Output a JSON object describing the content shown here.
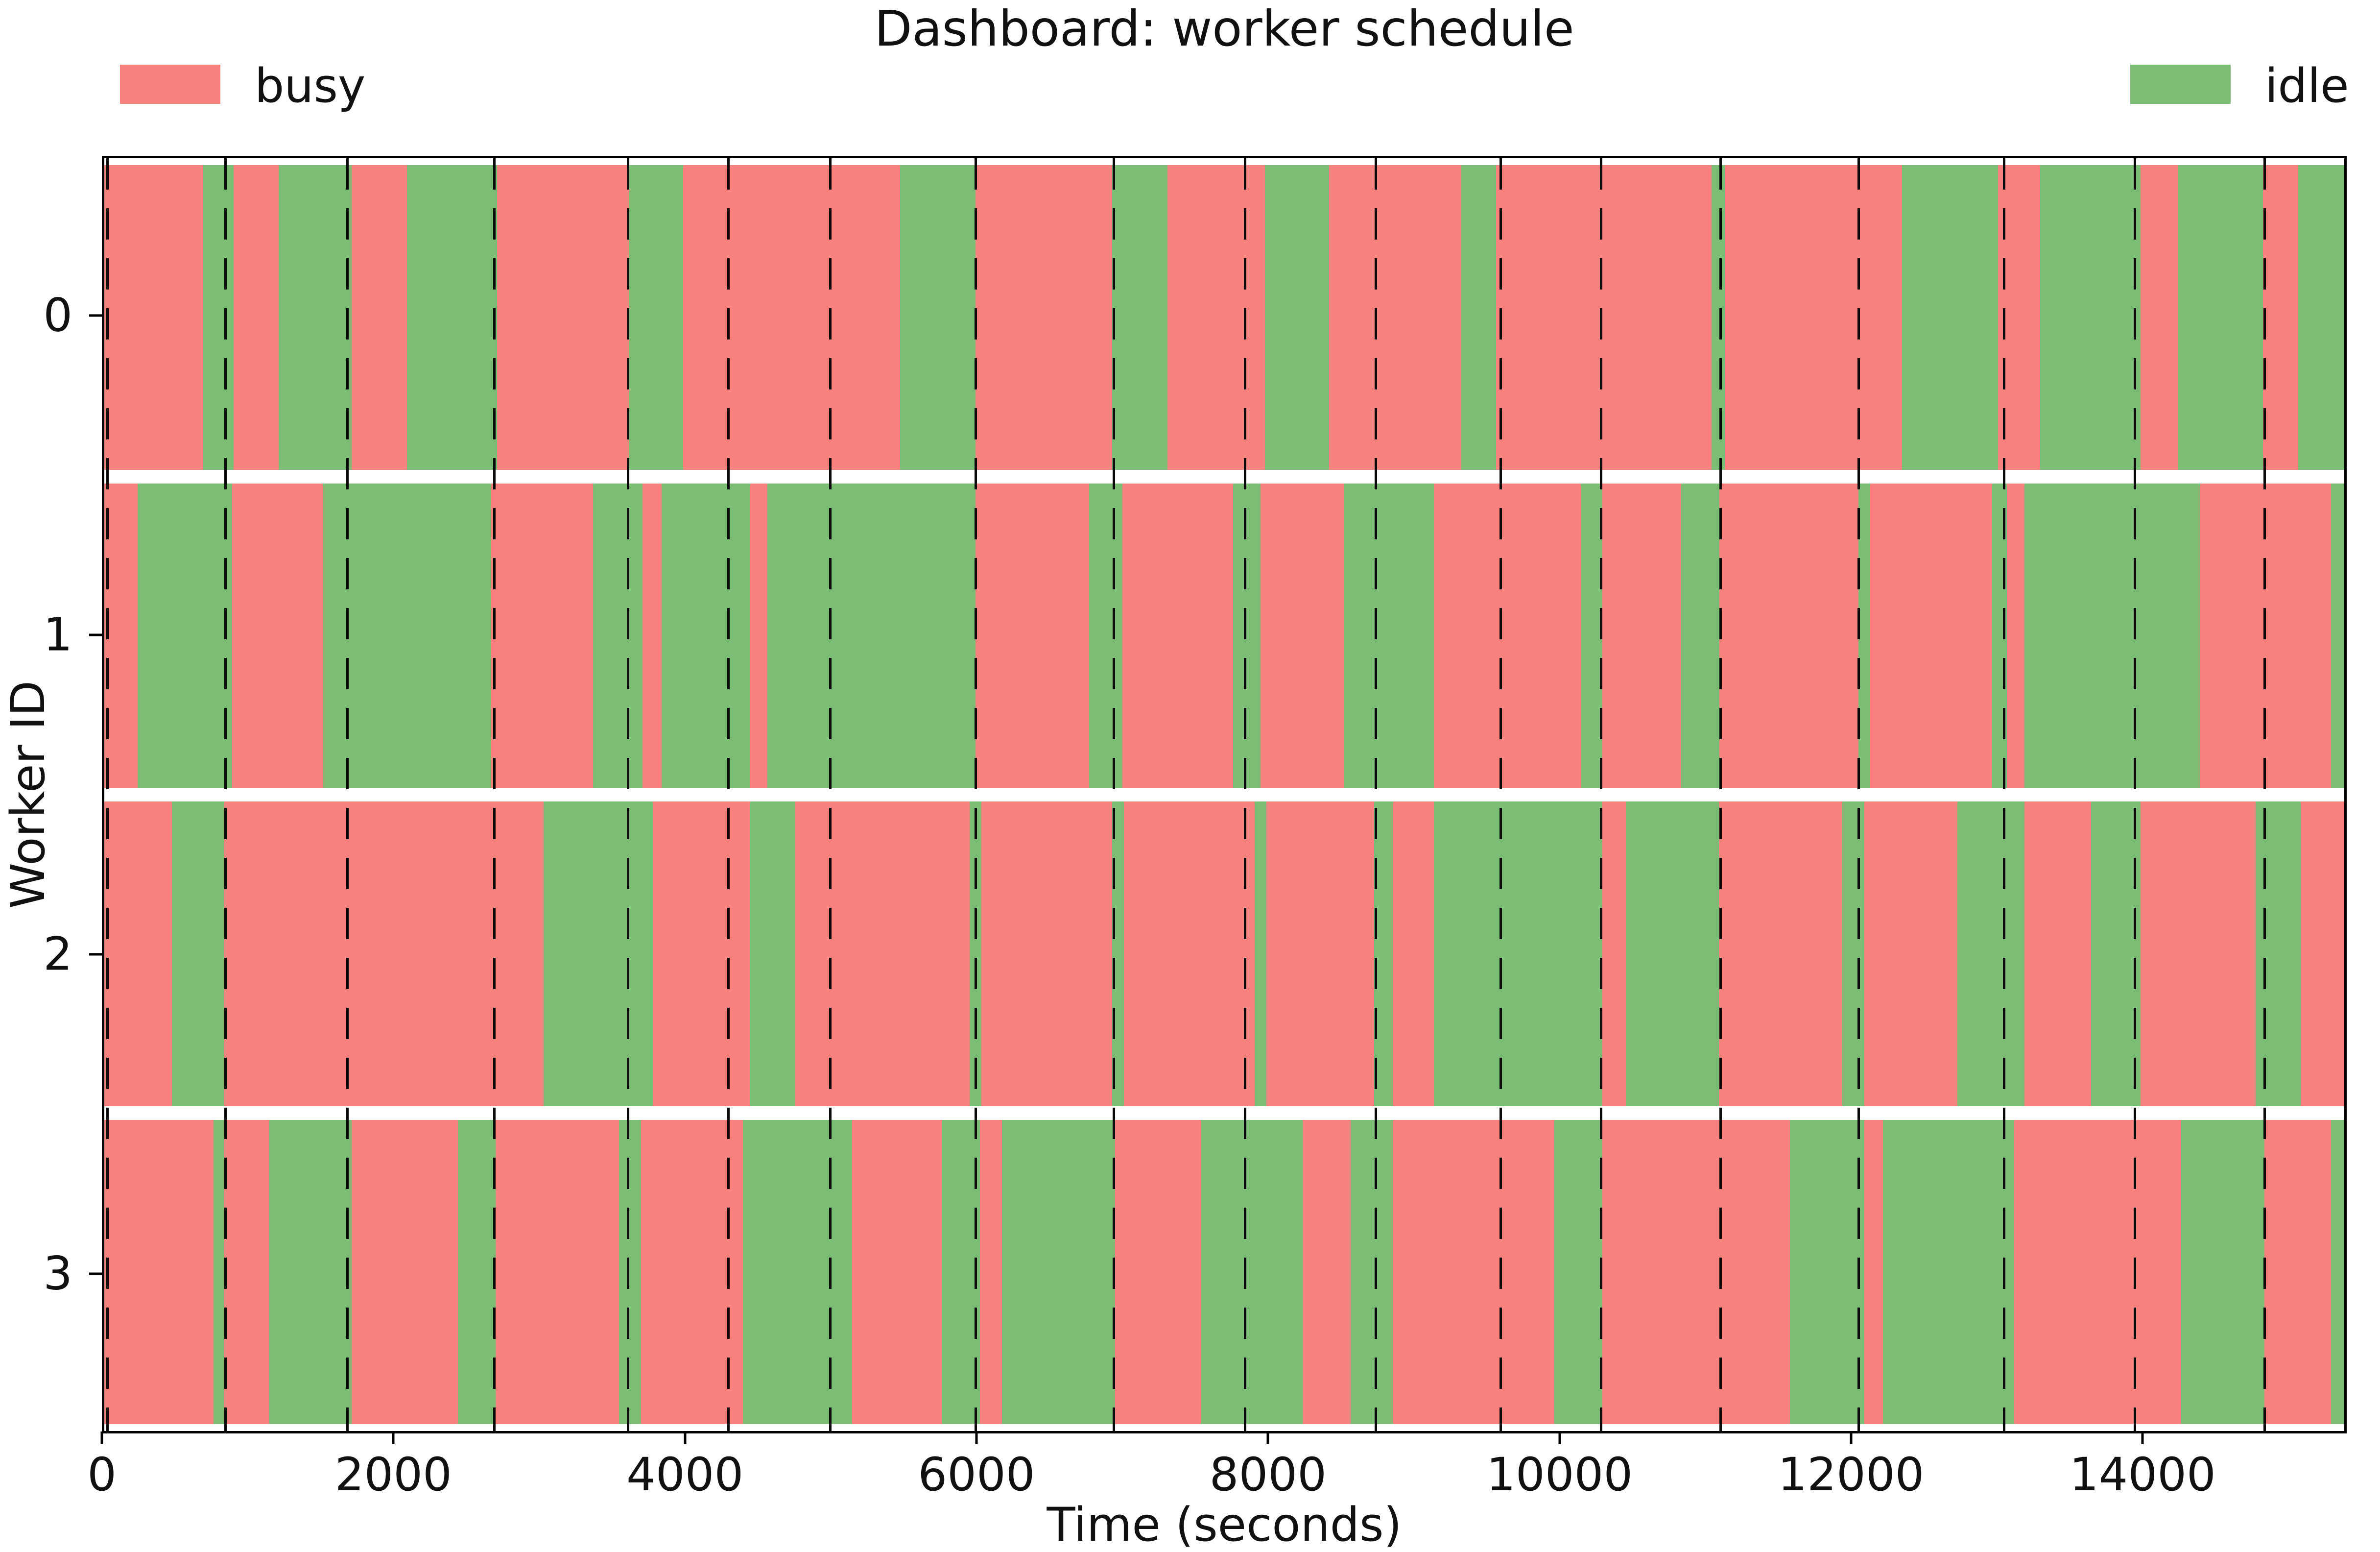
{
  "title": "Dashboard: worker schedule",
  "legend": {
    "busy_label": "busy",
    "idle_label": "idle"
  },
  "colors": {
    "busy": "#f9827e",
    "idle": "#7cbd75",
    "event_line": "#0a0a0a"
  },
  "chart_data": {
    "type": "gantt-timeline",
    "title": "Dashboard: worker schedule",
    "xlabel": "Time (seconds)",
    "ylabel": "Worker ID",
    "xlim": [
      0,
      15400
    ],
    "legend": [
      {
        "label": "busy",
        "color": "#f9827e"
      },
      {
        "label": "idle",
        "color": "#7cbd75"
      }
    ],
    "x_ticks": [
      {
        "value": 0,
        "label": "0"
      },
      {
        "value": 2000,
        "label": "2000"
      },
      {
        "value": 4000,
        "label": "4000"
      },
      {
        "value": 6000,
        "label": "6000"
      },
      {
        "value": 8000,
        "label": "8000"
      },
      {
        "value": 10000,
        "label": "10000"
      },
      {
        "value": 12000,
        "label": "12000"
      },
      {
        "value": 14000,
        "label": "14000"
      }
    ],
    "event_lines_seconds": [
      20,
      830,
      1670,
      2680,
      3600,
      4290,
      4990,
      5990,
      6940,
      7840,
      8740,
      9600,
      10290,
      11110,
      12060,
      13060,
      13960,
      14850
    ],
    "workers": [
      {
        "id": "0",
        "segments": [
          [
            0,
            680,
            "busy"
          ],
          [
            680,
            890,
            "idle"
          ],
          [
            890,
            1200,
            "busy"
          ],
          [
            1200,
            1700,
            "idle"
          ],
          [
            1700,
            2080,
            "busy"
          ],
          [
            2080,
            2700,
            "idle"
          ],
          [
            2700,
            3610,
            "busy"
          ],
          [
            3610,
            3980,
            "idle"
          ],
          [
            3980,
            5470,
            "busy"
          ],
          [
            5470,
            5990,
            "idle"
          ],
          [
            5990,
            6930,
            "busy"
          ],
          [
            6930,
            7310,
            "idle"
          ],
          [
            7310,
            7980,
            "busy"
          ],
          [
            7980,
            8420,
            "idle"
          ],
          [
            8420,
            9330,
            "busy"
          ],
          [
            9330,
            9570,
            "idle"
          ],
          [
            9570,
            11050,
            "busy"
          ],
          [
            11050,
            11140,
            "idle"
          ],
          [
            11140,
            12360,
            "busy"
          ],
          [
            12360,
            13020,
            "idle"
          ],
          [
            13020,
            13310,
            "busy"
          ],
          [
            13310,
            14000,
            "idle"
          ],
          [
            14000,
            14260,
            "busy"
          ],
          [
            14260,
            14840,
            "idle"
          ],
          [
            14840,
            15080,
            "busy"
          ],
          [
            15080,
            15400,
            "idle"
          ]
        ]
      },
      {
        "id": "1",
        "segments": [
          [
            0,
            230,
            "busy"
          ],
          [
            230,
            880,
            "idle"
          ],
          [
            880,
            1500,
            "busy"
          ],
          [
            1500,
            2660,
            "idle"
          ],
          [
            2660,
            3360,
            "busy"
          ],
          [
            3360,
            3700,
            "idle"
          ],
          [
            3700,
            3830,
            "busy"
          ],
          [
            3830,
            4440,
            "idle"
          ],
          [
            4440,
            4560,
            "busy"
          ],
          [
            4560,
            5990,
            "idle"
          ],
          [
            5990,
            6770,
            "busy"
          ],
          [
            6770,
            7000,
            "idle"
          ],
          [
            7000,
            7760,
            "busy"
          ],
          [
            7760,
            7950,
            "idle"
          ],
          [
            7950,
            8520,
            "busy"
          ],
          [
            8520,
            9140,
            "idle"
          ],
          [
            9140,
            10150,
            "busy"
          ],
          [
            10150,
            10300,
            "idle"
          ],
          [
            10300,
            10840,
            "busy"
          ],
          [
            10840,
            11105,
            "idle"
          ],
          [
            11105,
            12060,
            "busy"
          ],
          [
            12060,
            12140,
            "idle"
          ],
          [
            12140,
            12980,
            "busy"
          ],
          [
            12980,
            13080,
            "idle"
          ],
          [
            13080,
            13200,
            "busy"
          ],
          [
            13200,
            14410,
            "idle"
          ],
          [
            14410,
            15310,
            "busy"
          ],
          [
            15310,
            15400,
            "idle"
          ]
        ]
      },
      {
        "id": "2",
        "segments": [
          [
            0,
            465,
            "busy"
          ],
          [
            465,
            825,
            "idle"
          ],
          [
            825,
            3020,
            "busy"
          ],
          [
            3020,
            3770,
            "idle"
          ],
          [
            3770,
            4440,
            "busy"
          ],
          [
            4440,
            4750,
            "idle"
          ],
          [
            4750,
            5950,
            "busy"
          ],
          [
            5950,
            6030,
            "idle"
          ],
          [
            6030,
            6930,
            "busy"
          ],
          [
            6930,
            7010,
            "idle"
          ],
          [
            7010,
            7910,
            "busy"
          ],
          [
            7910,
            7990,
            "idle"
          ],
          [
            7990,
            8730,
            "busy"
          ],
          [
            8730,
            8860,
            "idle"
          ],
          [
            8860,
            9140,
            "busy"
          ],
          [
            9140,
            10300,
            "idle"
          ],
          [
            10300,
            10460,
            "busy"
          ],
          [
            10460,
            11100,
            "idle"
          ],
          [
            11100,
            11950,
            "busy"
          ],
          [
            11950,
            12100,
            "idle"
          ],
          [
            12100,
            12740,
            "busy"
          ],
          [
            12740,
            13200,
            "idle"
          ],
          [
            13200,
            13660,
            "busy"
          ],
          [
            13660,
            14000,
            "idle"
          ],
          [
            14000,
            14790,
            "busy"
          ],
          [
            14790,
            15100,
            "idle"
          ],
          [
            15100,
            15400,
            "busy"
          ]
        ]
      },
      {
        "id": "3",
        "segments": [
          [
            0,
            750,
            "busy"
          ],
          [
            750,
            825,
            "idle"
          ],
          [
            825,
            1135,
            "busy"
          ],
          [
            1135,
            1700,
            "idle"
          ],
          [
            1700,
            2430,
            "busy"
          ],
          [
            2430,
            2690,
            "idle"
          ],
          [
            2690,
            3540,
            "busy"
          ],
          [
            3540,
            3690,
            "idle"
          ],
          [
            3690,
            4390,
            "busy"
          ],
          [
            4390,
            5140,
            "idle"
          ],
          [
            5140,
            5760,
            "busy"
          ],
          [
            5760,
            6020,
            "idle"
          ],
          [
            6020,
            6170,
            "busy"
          ],
          [
            6170,
            6950,
            "idle"
          ],
          [
            6950,
            7540,
            "busy"
          ],
          [
            7540,
            8240,
            "idle"
          ],
          [
            8240,
            8570,
            "busy"
          ],
          [
            8570,
            8860,
            "idle"
          ],
          [
            8860,
            9970,
            "busy"
          ],
          [
            9970,
            10300,
            "idle"
          ],
          [
            10300,
            11590,
            "busy"
          ],
          [
            11590,
            12100,
            "idle"
          ],
          [
            12100,
            12230,
            "busy"
          ],
          [
            12230,
            13130,
            "idle"
          ],
          [
            13130,
            14280,
            "busy"
          ],
          [
            14280,
            14850,
            "idle"
          ],
          [
            14850,
            15310,
            "busy"
          ],
          [
            15310,
            15400,
            "idle"
          ]
        ]
      }
    ]
  }
}
